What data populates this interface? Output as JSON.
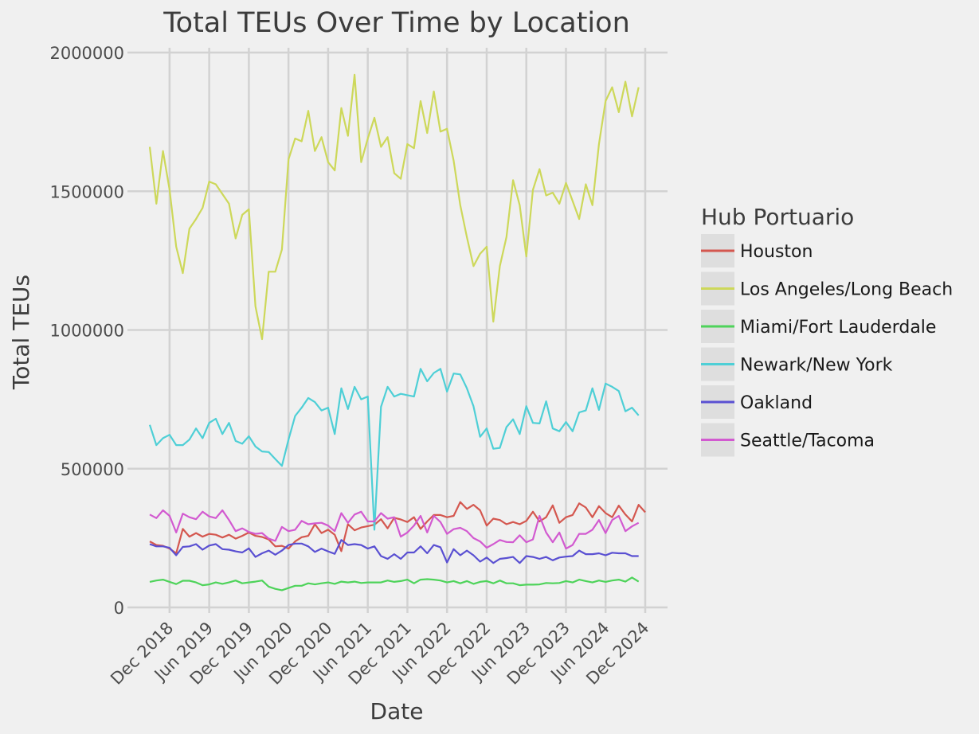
{
  "chart_data": {
    "type": "line",
    "title": "Total TEUs Over Time by Location",
    "xlabel": "Date",
    "ylabel": "Total TEUs",
    "legend_title": "Hub Portuario",
    "legend_position": "right",
    "grid": true,
    "ylim": [
      0,
      2000000
    ],
    "yticks": [
      0,
      500000,
      1000000,
      1500000,
      2000000
    ],
    "ytick_labels": [
      "0",
      "500000",
      "1000000",
      "1500000",
      "2000000"
    ],
    "xlim": [
      "2018-09",
      "2024-12"
    ],
    "xticks": [
      "2018-12",
      "2019-06",
      "2019-12",
      "2020-06",
      "2020-12",
      "2021-06",
      "2021-12",
      "2022-06",
      "2022-12",
      "2023-06",
      "2023-12",
      "2024-06",
      "2024-12"
    ],
    "xtick_labels": [
      "Dec 2018",
      "Jun 2019",
      "Dec 2019",
      "Jun 2020",
      "Dec 2020",
      "Jun 2021",
      "Dec 2021",
      "Jun 2022",
      "Dec 2022",
      "Jun 2023",
      "Dec 2023",
      "Jun 2024",
      "Dec 2024"
    ],
    "x_start": "2018-09",
    "x_frequency": "monthly",
    "series": [
      {
        "name": "Houston",
        "color": "#d4574f",
        "values": [
          238000,
          225000,
          222000,
          212000,
          195000,
          283000,
          255000,
          268000,
          255000,
          265000,
          262000,
          252000,
          262000,
          248000,
          258000,
          270000,
          258000,
          254000,
          245000,
          220000,
          222000,
          212000,
          238000,
          253000,
          258000,
          300000,
          268000,
          280000,
          262000,
          203000,
          300000,
          278000,
          288000,
          293000,
          298000,
          318000,
          285000,
          323000,
          317000,
          308000,
          325000,
          283000,
          310000,
          333000,
          333000,
          325000,
          330000,
          380000,
          355000,
          370000,
          350000,
          295000,
          320000,
          315000,
          300000,
          308000,
          300000,
          312000,
          345000,
          310000,
          325000,
          368000,
          305000,
          325000,
          333000,
          375000,
          360000,
          325000,
          365000,
          340000,
          325000,
          367000,
          335000,
          310000,
          370000,
          343000
        ]
      },
      {
        "name": "Los Angeles/Long Beach",
        "color": "#cdd85a",
        "values": [
          1660000,
          1455000,
          1645000,
          1505000,
          1300000,
          1205000,
          1365000,
          1400000,
          1440000,
          1535000,
          1525000,
          1490000,
          1455000,
          1330000,
          1415000,
          1435000,
          1085000,
          967000,
          1210000,
          1210000,
          1290000,
          1615000,
          1690000,
          1680000,
          1790000,
          1645000,
          1695000,
          1605000,
          1575000,
          1800000,
          1700000,
          1920000,
          1605000,
          1690000,
          1765000,
          1660000,
          1695000,
          1565000,
          1545000,
          1670000,
          1655000,
          1825000,
          1710000,
          1860000,
          1715000,
          1725000,
          1610000,
          1450000,
          1335000,
          1230000,
          1275000,
          1300000,
          1030000,
          1230000,
          1335000,
          1540000,
          1450000,
          1265000,
          1505000,
          1580000,
          1485000,
          1495000,
          1455000,
          1530000,
          1465000,
          1400000,
          1525000,
          1450000,
          1670000,
          1825000,
          1875000,
          1785000,
          1895000,
          1770000,
          1875000
        ]
      },
      {
        "name": "Miami/Fort Lauderdale",
        "color": "#4ed35a",
        "values": [
          92000,
          97000,
          100000,
          92000,
          84000,
          96000,
          96000,
          90000,
          80000,
          83000,
          90000,
          85000,
          90000,
          97000,
          87000,
          90000,
          93000,
          97000,
          75000,
          67000,
          62000,
          70000,
          78000,
          78000,
          87000,
          83000,
          87000,
          90000,
          85000,
          93000,
          90000,
          93000,
          88000,
          90000,
          90000,
          90000,
          97000,
          92000,
          95000,
          100000,
          87000,
          100000,
          102000,
          100000,
          97000,
          90000,
          95000,
          87000,
          95000,
          85000,
          92000,
          95000,
          87000,
          97000,
          87000,
          87000,
          80000,
          82000,
          82000,
          83000,
          88000,
          87000,
          88000,
          95000,
          90000,
          100000,
          95000,
          90000,
          97000,
          92000,
          97000,
          100000,
          93000,
          108000,
          93000
        ]
      },
      {
        "name": "Newark/New York",
        "color": "#4ecfd6",
        "values": [
          658000,
          585000,
          610000,
          622000,
          585000,
          585000,
          605000,
          645000,
          610000,
          665000,
          680000,
          625000,
          665000,
          600000,
          590000,
          617000,
          580000,
          562000,
          560000,
          535000,
          510000,
          605000,
          690000,
          720000,
          755000,
          740000,
          710000,
          720000,
          625000,
          790000,
          715000,
          795000,
          750000,
          760000,
          280000,
          723000,
          795000,
          760000,
          770000,
          765000,
          760000,
          860000,
          815000,
          845000,
          860000,
          778000,
          843000,
          840000,
          790000,
          725000,
          615000,
          645000,
          572000,
          575000,
          650000,
          678000,
          625000,
          725000,
          665000,
          663000,
          743000,
          645000,
          635000,
          668000,
          635000,
          703000,
          710000,
          790000,
          712000,
          807000,
          795000,
          780000,
          707000,
          720000,
          692000
        ]
      },
      {
        "name": "Oakland",
        "color": "#5a50d2",
        "values": [
          228000,
          220000,
          220000,
          215000,
          188000,
          218000,
          220000,
          228000,
          208000,
          223000,
          228000,
          210000,
          208000,
          202000,
          198000,
          213000,
          182000,
          195000,
          205000,
          190000,
          205000,
          225000,
          230000,
          230000,
          220000,
          200000,
          212000,
          202000,
          193000,
          243000,
          225000,
          228000,
          225000,
          212000,
          220000,
          185000,
          175000,
          192000,
          175000,
          198000,
          198000,
          220000,
          195000,
          225000,
          217000,
          162000,
          210000,
          188000,
          205000,
          188000,
          165000,
          180000,
          160000,
          175000,
          178000,
          182000,
          160000,
          185000,
          182000,
          175000,
          182000,
          170000,
          180000,
          183000,
          185000,
          205000,
          192000,
          192000,
          195000,
          188000,
          197000,
          195000,
          195000,
          185000,
          185000
        ]
      },
      {
        "name": "Seattle/Tacoma",
        "color": "#d25ad0",
        "values": [
          335000,
          322000,
          350000,
          330000,
          270000,
          338000,
          325000,
          318000,
          345000,
          328000,
          322000,
          350000,
          315000,
          275000,
          285000,
          272000,
          265000,
          268000,
          248000,
          240000,
          290000,
          275000,
          280000,
          312000,
          300000,
          303000,
          305000,
          295000,
          275000,
          340000,
          305000,
          335000,
          345000,
          310000,
          310000,
          340000,
          320000,
          325000,
          255000,
          270000,
          295000,
          330000,
          270000,
          330000,
          308000,
          265000,
          282000,
          287000,
          275000,
          250000,
          238000,
          215000,
          228000,
          243000,
          236000,
          235000,
          260000,
          235000,
          245000,
          330000,
          270000,
          235000,
          270000,
          212000,
          225000,
          265000,
          265000,
          280000,
          315000,
          268000,
          315000,
          330000,
          275000,
          292000,
          305000
        ]
      }
    ]
  }
}
